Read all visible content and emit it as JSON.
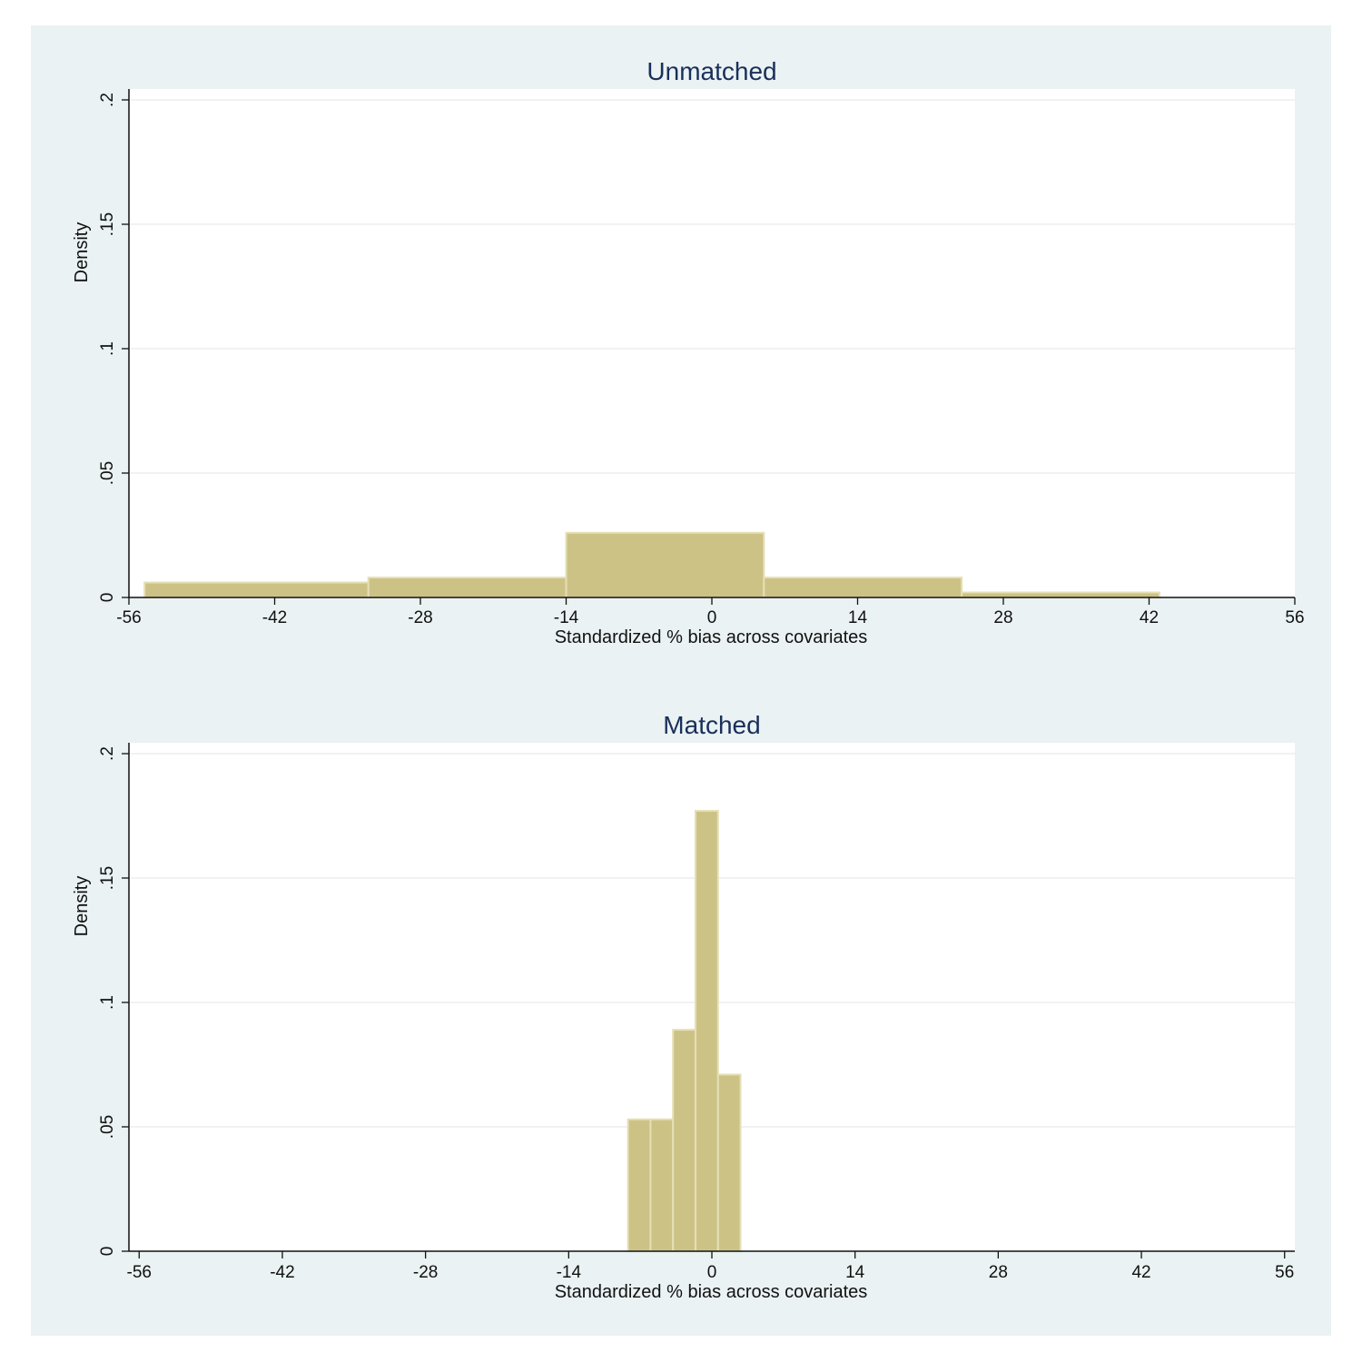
{
  "colors": {
    "outer_background": "#eaf2f3",
    "plot_background": "#ffffff",
    "bar_fill": "#cdc286",
    "bar_edge": "#e5dfb4",
    "grid": "#eaeaea",
    "axis": "#111111",
    "title": "#1a2f5a"
  },
  "chart_data": [
    {
      "type": "bar",
      "title": "Unmatched",
      "xlabel": "Standardized % bias across covariates",
      "ylabel": "Density",
      "xlim": [
        -56,
        56
      ],
      "ylim": [
        0,
        0.2
      ],
      "xticks": [
        -56,
        -42,
        -28,
        -14,
        0,
        14,
        28,
        42,
        56
      ],
      "xtick_labels": [
        "-56",
        "-42",
        "-28",
        "-14",
        "0",
        "14",
        "28",
        "42",
        "56"
      ],
      "yticks": [
        0,
        0.05,
        0.1,
        0.15,
        0.2
      ],
      "ytick_labels": [
        "0",
        ".05",
        ".1",
        ".15",
        ".2"
      ],
      "grid": true,
      "bins": [
        {
          "x0": -54.5,
          "x1": -33.0,
          "density": 0.006
        },
        {
          "x0": -33.0,
          "x1": -14.0,
          "density": 0.008
        },
        {
          "x0": -14.0,
          "x1": 5.0,
          "density": 0.026
        },
        {
          "x0": 5.0,
          "x1": 24.0,
          "density": 0.008
        },
        {
          "x0": 24.0,
          "x1": 43.0,
          "density": 0.002
        }
      ]
    },
    {
      "type": "bar",
      "title": "Matched",
      "xlabel": "Standardized % bias across covariates",
      "ylabel": "Density",
      "xlim": [
        -57,
        57
      ],
      "ylim": [
        0,
        0.2
      ],
      "xticks": [
        -56,
        -42,
        -28,
        -14,
        0,
        14,
        28,
        42,
        56
      ],
      "xtick_labels": [
        "-56",
        "-42",
        "-28",
        "-14",
        "0",
        "14",
        "28",
        "42",
        "56"
      ],
      "yticks": [
        0,
        0.05,
        0.1,
        0.15,
        0.2
      ],
      "ytick_labels": [
        "0",
        ".05",
        ".1",
        ".15",
        ".2"
      ],
      "grid": true,
      "bins": [
        {
          "x0": -8.2,
          "x1": -6.0,
          "density": 0.053
        },
        {
          "x0": -6.0,
          "x1": -3.8,
          "density": 0.053
        },
        {
          "x0": -3.8,
          "x1": -1.6,
          "density": 0.089
        },
        {
          "x0": -1.6,
          "x1": 0.6,
          "density": 0.177
        },
        {
          "x0": 0.6,
          "x1": 2.8,
          "density": 0.071
        }
      ]
    }
  ]
}
